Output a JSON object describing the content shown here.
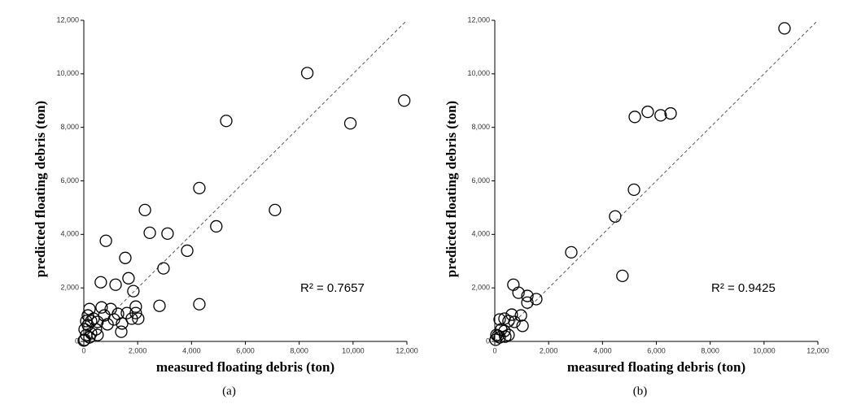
{
  "chart_data": [
    {
      "type": "scatter",
      "xlabel": "measured floating debris (ton)",
      "ylabel": "predicted floating debris (ton)",
      "caption": "(a)",
      "annotation": "R² = 0.7657",
      "x": [
        8300,
        5290,
        9900,
        11900,
        4290,
        2270,
        7100,
        820,
        2450,
        3110,
        4920,
        3840,
        2960,
        1540,
        1660,
        1840,
        630,
        1180,
        2810,
        4290,
        1930,
        210,
        150,
        270,
        510,
        760,
        1000,
        1270,
        1420,
        1390,
        1600,
        1780,
        1930,
        2020,
        1120,
        880,
        450,
        270,
        90,
        30,
        150,
        360,
        660,
        30,
        210,
        510,
        90,
        0
      ],
      "y": [
        10030,
        8240,
        8150,
        9000,
        5730,
        4910,
        4910,
        3760,
        4060,
        4030,
        4300,
        3390,
        2730,
        3120,
        2360,
        1880,
        2210,
        2120,
        1330,
        1390,
        1300,
        1210,
        970,
        760,
        730,
        970,
        1210,
        1030,
        670,
        360,
        1060,
        850,
        1060,
        850,
        820,
        640,
        450,
        300,
        240,
        60,
        610,
        850,
        1270,
        450,
        150,
        240,
        760,
        30
      ],
      "xlim": [
        0,
        12000
      ],
      "ylim": [
        0,
        12000
      ],
      "xticks": [
        0,
        {
          "value": 2000,
          "label": "2,000"
        },
        {
          "value": 4000,
          "label": "4,000"
        },
        {
          "value": 6000,
          "label": "6,000"
        },
        {
          "value": 8000,
          "label": "8,000"
        },
        {
          "value": 10000,
          "label": "10,000"
        },
        {
          "value": 12000,
          "label": "12,000"
        }
      ],
      "yticks": [
        0,
        {
          "value": 2000,
          "label": "2,000"
        },
        {
          "value": 4000,
          "label": "4,000"
        },
        {
          "value": 6000,
          "label": "6,000"
        },
        {
          "value": 8000,
          "label": "8,000"
        },
        {
          "value": 10000,
          "label": "10,000"
        },
        {
          "value": 12000,
          "label": "12,000"
        }
      ],
      "diagonal": true,
      "color": "#000000"
    },
    {
      "type": "scatter",
      "xlabel": "measured floating debris (ton)",
      "ylabel": "predicted floating debris (ton)",
      "caption": "(b)",
      "annotation": "R² = 0.9425",
      "x": [
        10760,
        5680,
        5200,
        6160,
        6530,
        5170,
        4470,
        2840,
        4740,
        690,
        880,
        1210,
        1210,
        1540,
        970,
        630,
        1030,
        360,
        180,
        510,
        730,
        240,
        60,
        120,
        390,
        510,
        180,
        30,
        360
      ],
      "y": [
        11700,
        8580,
        8390,
        8450,
        8520,
        5670,
        4670,
        3330,
        2450,
        2120,
        1820,
        1700,
        1450,
        1580,
        970,
        1000,
        580,
        850,
        820,
        760,
        730,
        450,
        240,
        210,
        180,
        240,
        150,
        60,
        390
      ],
      "xlim": [
        0,
        12000
      ],
      "ylim": [
        0,
        12000
      ],
      "xticks": [
        0,
        {
          "value": 2000,
          "label": "2,000"
        },
        {
          "value": 4000,
          "label": "4,000"
        },
        {
          "value": 6000,
          "label": "6,000"
        },
        {
          "value": 8000,
          "label": "8,000"
        },
        {
          "value": 10000,
          "label": "10,000"
        },
        {
          "value": 12000,
          "label": "12,000"
        }
      ],
      "yticks": [
        0,
        {
          "value": 2000,
          "label": "2,000"
        },
        {
          "value": 4000,
          "label": "4,000"
        },
        {
          "value": 6000,
          "label": "6,000"
        },
        {
          "value": 8000,
          "label": "8,000"
        },
        {
          "value": 10000,
          "label": "10,000"
        },
        {
          "value": 12000,
          "label": "12,000"
        }
      ],
      "diagonal": true,
      "color": "#000000"
    }
  ]
}
